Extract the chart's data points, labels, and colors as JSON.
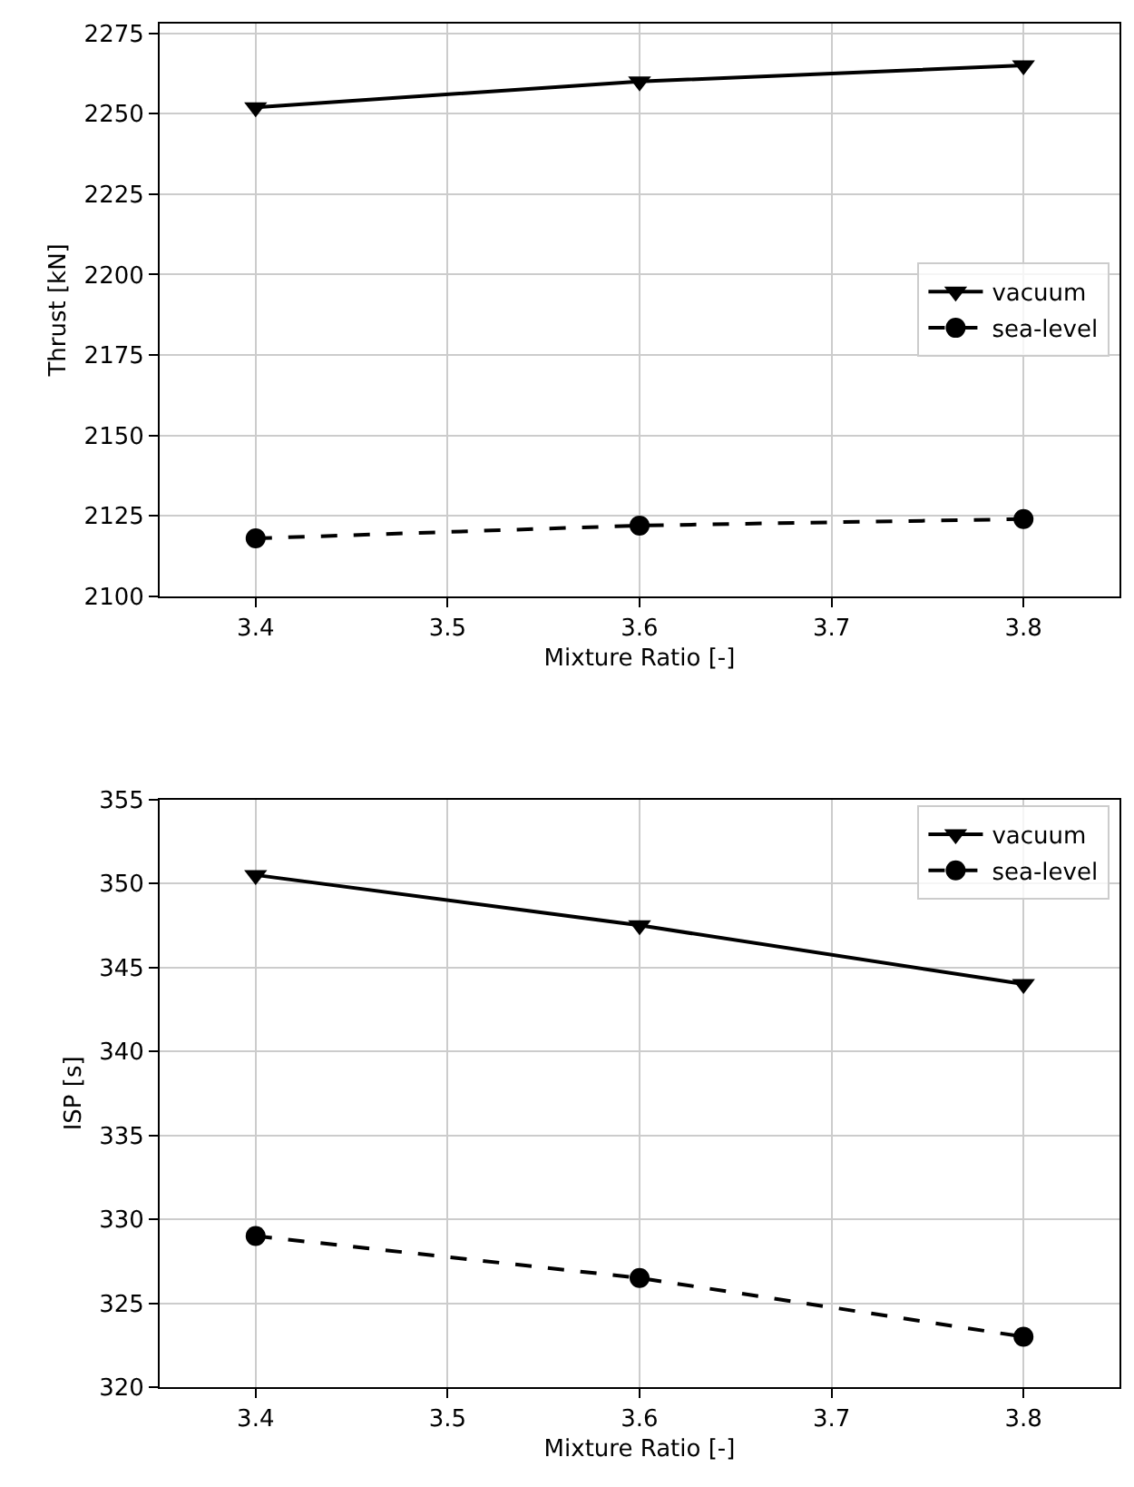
{
  "chart_data": [
    {
      "type": "line",
      "xlabel": "Mixture Ratio [-]",
      "ylabel": "Thrust [kN]",
      "x": [
        3.4,
        3.6,
        3.8
      ],
      "xlim": [
        3.35,
        3.85
      ],
      "xticks": [
        3.4,
        3.5,
        3.6,
        3.7,
        3.8
      ],
      "ylim": [
        2100,
        2278
      ],
      "yticks": [
        2100,
        2125,
        2150,
        2175,
        2200,
        2225,
        2250,
        2275
      ],
      "grid": true,
      "legend": "right",
      "series": [
        {
          "name": "vacuum",
          "color": "#000000",
          "values": [
            2252,
            2260,
            2265
          ],
          "marker": "triangle",
          "line_style": "solid"
        },
        {
          "name": "sea-level",
          "color": "#000000",
          "values": [
            2118,
            2122,
            2124
          ],
          "marker": "circle",
          "line_style": "dashed"
        }
      ]
    },
    {
      "type": "line",
      "xlabel": "Mixture Ratio [-]",
      "ylabel": "ISP [s]",
      "x": [
        3.4,
        3.6,
        3.8
      ],
      "xlim": [
        3.35,
        3.85
      ],
      "xticks": [
        3.4,
        3.5,
        3.6,
        3.7,
        3.8
      ],
      "ylim": [
        320,
        355
      ],
      "yticks": [
        320,
        325,
        330,
        335,
        340,
        345,
        350,
        355
      ],
      "grid": true,
      "legend": "top right",
      "series": [
        {
          "name": "vacuum",
          "color": "#000000",
          "values": [
            350.5,
            347.5,
            344
          ],
          "marker": "triangle",
          "line_style": "solid"
        },
        {
          "name": "sea-level",
          "color": "#000000",
          "values": [
            329,
            326.5,
            323
          ],
          "marker": "circle",
          "line_style": "dashed"
        }
      ]
    }
  ]
}
